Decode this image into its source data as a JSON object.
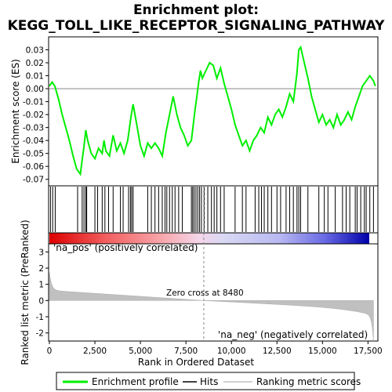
{
  "chart_data": {
    "type": "line",
    "title_line1": "Enrichment plot:",
    "title_line2": "KEGG_TOLL_LIKE_RECEPTOR_SIGNALING_PATHWAY",
    "es_panel": {
      "ylabel": "Enrichment score (ES)",
      "ylim": [
        -0.075,
        0.04
      ],
      "yticks": [
        "0.03",
        "0.02",
        "0.01",
        "0.00",
        "-0.01",
        "-0.02",
        "-0.03",
        "-0.04",
        "-0.05",
        "-0.06",
        "-0.07"
      ],
      "ytick_values": [
        0.03,
        0.02,
        0.01,
        0.0,
        -0.01,
        -0.02,
        -0.03,
        -0.04,
        -0.05,
        -0.06,
        -0.07
      ],
      "x": [
        0,
        150,
        300,
        500,
        700,
        900,
        1100,
        1300,
        1500,
        1700,
        1800,
        1900,
        2000,
        2100,
        2300,
        2500,
        2700,
        2900,
        3000,
        3100,
        3300,
        3500,
        3700,
        3900,
        4100,
        4300,
        4500,
        4600,
        4800,
        5000,
        5200,
        5400,
        5600,
        5800,
        6000,
        6200,
        6400,
        6600,
        6800,
        7000,
        7200,
        7400,
        7600,
        7800,
        7900,
        8000,
        8100,
        8200,
        8300,
        8400,
        8600,
        8800,
        9000,
        9200,
        9400,
        9600,
        9800,
        10000,
        10200,
        10400,
        10600,
        10800,
        11000,
        11200,
        11400,
        11600,
        11800,
        12000,
        12200,
        12400,
        12600,
        12800,
        13000,
        13200,
        13400,
        13600,
        13700,
        13800,
        14000,
        14200,
        14400,
        14600,
        14800,
        15000,
        15200,
        15400,
        15600,
        15800,
        16000,
        16200,
        16400,
        16600,
        16800,
        17000,
        17200,
        17400,
        17600,
        17800,
        17900
      ],
      "y": [
        0.002,
        0.005,
        0.002,
        -0.008,
        -0.02,
        -0.03,
        -0.04,
        -0.052,
        -0.062,
        -0.066,
        -0.055,
        -0.045,
        -0.032,
        -0.04,
        -0.05,
        -0.054,
        -0.046,
        -0.05,
        -0.04,
        -0.048,
        -0.052,
        -0.036,
        -0.048,
        -0.042,
        -0.05,
        -0.04,
        -0.02,
        -0.012,
        -0.028,
        -0.044,
        -0.052,
        -0.042,
        -0.046,
        -0.042,
        -0.046,
        -0.052,
        -0.034,
        -0.02,
        -0.006,
        -0.02,
        -0.03,
        -0.036,
        -0.044,
        -0.04,
        -0.028,
        -0.016,
        -0.006,
        0.005,
        0.014,
        0.008,
        0.014,
        0.02,
        0.018,
        0.008,
        0.016,
        0.004,
        -0.006,
        -0.016,
        -0.028,
        -0.036,
        -0.044,
        -0.04,
        -0.048,
        -0.04,
        -0.036,
        -0.03,
        -0.034,
        -0.022,
        -0.028,
        -0.02,
        -0.016,
        -0.022,
        -0.014,
        -0.004,
        -0.01,
        0.012,
        0.03,
        0.032,
        0.02,
        0.008,
        -0.006,
        -0.016,
        -0.026,
        -0.02,
        -0.028,
        -0.024,
        -0.03,
        -0.02,
        -0.028,
        -0.024,
        -0.018,
        -0.024,
        -0.014,
        -0.006,
        0.002,
        0.006,
        0.01,
        0.006,
        0.002
      ]
    },
    "hits_panel": {
      "hit_positions": [
        60,
        180,
        320,
        1550,
        1800,
        1900,
        2000,
        2050,
        2500,
        2650,
        2900,
        3050,
        3250,
        3500,
        3900,
        4050,
        4350,
        4450,
        4520,
        4600,
        5400,
        5600,
        5800,
        6000,
        6200,
        6350,
        6450,
        6600,
        6750,
        6900,
        7100,
        7300,
        7800,
        7870,
        7950,
        8050,
        8150,
        8250,
        8350,
        8500,
        8700,
        8900,
        9050,
        9200,
        9400,
        9600,
        10200,
        10600,
        10800,
        11300,
        11500,
        11650,
        11800,
        12000,
        12200,
        12500,
        12700,
        13000,
        13200,
        13400,
        13600,
        13700,
        13800,
        14200,
        14800,
        15100,
        15300,
        15700,
        16100,
        16300,
        16500,
        16800,
        16900,
        17100,
        17300,
        17400,
        17600,
        17800
      ]
    },
    "rank_panel": {
      "ylabel": "Ranked list metric (PreRanked)",
      "ylim": [
        -2.5,
        3.5
      ],
      "yticks": [
        "3",
        "2",
        "1",
        "0",
        "-1",
        "-2"
      ],
      "ytick_values": [
        3,
        2,
        1,
        0,
        -1,
        -2
      ],
      "pos_label": "'na_pos' (positively correlated)",
      "neg_label": "'na_neg' (negatively correlated)",
      "zero_cross_label": "Zero cross at 8480",
      "zero_cross": 8480
    },
    "xlabel": "Rank in Ordered Dataset",
    "xlim": [
      0,
      18000
    ],
    "xticks": [
      "0",
      "2,500",
      "5,000",
      "7,500",
      "10,000",
      "12,500",
      "15,000",
      "17,500"
    ],
    "xtick_values": [
      0,
      2500,
      5000,
      7500,
      10000,
      12500,
      15000,
      17500
    ],
    "legend": [
      "Enrichment profile",
      "Hits",
      "Ranking metric scores"
    ],
    "colors": {
      "profile": "#00ee00",
      "hits": "#000000",
      "metric_fill": "#c0c0c0",
      "pos_text": "#ff0000",
      "neg_text": "#0000cc",
      "zero_line": "#888888"
    }
  }
}
